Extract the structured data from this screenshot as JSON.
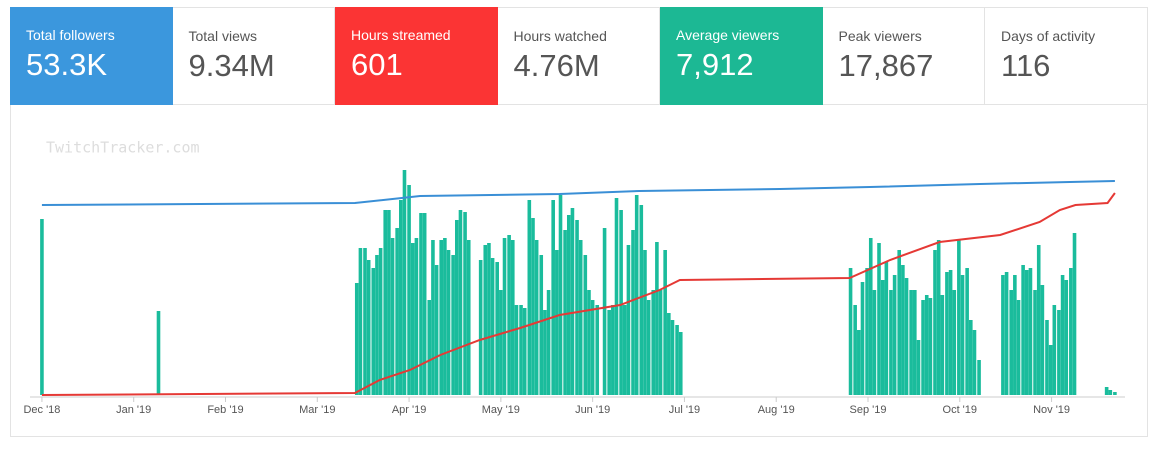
{
  "cards": [
    {
      "label": "Total followers",
      "value": "53.3K",
      "color": "#3b97dd"
    },
    {
      "label": "Total views",
      "value": "9.34M",
      "color": null
    },
    {
      "label": "Hours streamed",
      "value": "601",
      "color": "#fb3434"
    },
    {
      "label": "Hours watched",
      "value": "4.76M",
      "color": null
    },
    {
      "label": "Average viewers",
      "value": "7,912",
      "color": "#1cb894"
    },
    {
      "label": "Peak viewers",
      "value": "17,867",
      "color": null
    },
    {
      "label": "Days of activity",
      "value": "116",
      "color": null
    }
  ],
  "chart_data": {
    "type": "bar",
    "watermark": "TwitchTracker.com",
    "xlim": [
      -0.13,
      11.8
    ],
    "ylim": [
      0,
      230
    ],
    "xticks": [
      {
        "value": 0,
        "label": "Dec '18"
      },
      {
        "value": 1,
        "label": "Jan '19"
      },
      {
        "value": 2,
        "label": "Feb '19"
      },
      {
        "value": 3,
        "label": "Mar '19"
      },
      {
        "value": 4,
        "label": "Apr '19"
      },
      {
        "value": 5,
        "label": "May '19"
      },
      {
        "value": 6,
        "label": "Jun '19"
      },
      {
        "value": 7,
        "label": "Jul '19"
      },
      {
        "value": 8,
        "label": "Aug '19"
      },
      {
        "value": 9,
        "label": "Sep '19"
      },
      {
        "value": 10,
        "label": "Oct '19"
      },
      {
        "value": 11,
        "label": "Nov '19"
      }
    ],
    "bars": {
      "color": "#1abc9c",
      "x": [
        0.0,
        1.27,
        3.43,
        3.47,
        3.52,
        3.56,
        3.61,
        3.65,
        3.69,
        3.74,
        3.78,
        3.82,
        3.87,
        3.91,
        3.95,
        4.0,
        4.04,
        4.08,
        4.13,
        4.17,
        4.22,
        4.26,
        4.3,
        4.35,
        4.39,
        4.43,
        4.48,
        4.52,
        4.56,
        4.61,
        4.65,
        4.78,
        4.83,
        4.87,
        4.91,
        4.96,
        5.0,
        5.04,
        5.09,
        5.13,
        5.17,
        5.22,
        5.26,
        5.31,
        5.35,
        5.39,
        5.44,
        5.48,
        5.52,
        5.57,
        5.61,
        5.65,
        5.7,
        5.74,
        5.78,
        5.83,
        5.87,
        5.92,
        5.96,
        6.0,
        6.05,
        6.13,
        6.18,
        6.22,
        6.26,
        6.31,
        6.35,
        6.39,
        6.44,
        6.48,
        6.53,
        6.57,
        6.61,
        6.66,
        6.7,
        6.74,
        6.79,
        6.83,
        6.87,
        6.92,
        6.96,
        8.81,
        8.86,
        8.9,
        8.94,
        8.99,
        9.03,
        9.07,
        9.12,
        9.16,
        9.2,
        9.25,
        9.29,
        9.34,
        9.38,
        9.42,
        9.47,
        9.51,
        9.55,
        9.6,
        9.64,
        9.68,
        9.73,
        9.77,
        9.81,
        9.86,
        9.9,
        9.94,
        9.99,
        10.03,
        10.08,
        10.12,
        10.16,
        10.21,
        10.47,
        10.51,
        10.56,
        10.6,
        10.64,
        10.69,
        10.73,
        10.77,
        10.82,
        10.86,
        10.9,
        10.95,
        10.99,
        11.03,
        11.08,
        11.12,
        11.16,
        11.21,
        11.25,
        11.6,
        11.64,
        11.69
      ],
      "values": [
        176,
        84,
        112,
        147,
        147,
        135,
        127,
        140,
        147,
        185,
        185,
        157,
        167,
        195,
        225,
        210,
        152,
        157,
        182,
        182,
        95,
        155,
        130,
        155,
        157,
        145,
        140,
        175,
        185,
        183,
        155,
        135,
        150,
        152,
        137,
        133,
        105,
        157,
        160,
        155,
        90,
        90,
        87,
        195,
        177,
        155,
        140,
        85,
        105,
        195,
        145,
        200,
        165,
        180,
        187,
        175,
        155,
        140,
        105,
        95,
        90,
        167,
        85,
        90,
        197,
        185,
        90,
        150,
        165,
        200,
        190,
        145,
        95,
        105,
        153,
        105,
        145,
        82,
        75,
        70,
        63,
        127,
        90,
        65,
        113,
        127,
        157,
        105,
        152,
        115,
        133,
        105,
        120,
        145,
        130,
        117,
        105,
        105,
        55,
        95,
        100,
        97,
        145,
        155,
        100,
        123,
        125,
        105,
        155,
        120,
        127,
        75,
        65,
        35,
        120,
        123,
        105,
        120,
        95,
        130,
        125,
        127,
        105,
        150,
        110,
        75,
        50,
        90,
        85,
        120,
        115,
        127,
        162,
        8,
        5,
        3
      ]
    },
    "series": [
      {
        "type": "line",
        "color": "#3a8fd6",
        "x": [
          0,
          3.41,
          4.12,
          5.64,
          6.51,
          8.04,
          9.02,
          10.22,
          11.2,
          11.69
        ],
        "values": [
          190,
          192,
          199,
          201,
          204,
          206,
          208,
          211,
          213,
          214
        ]
      },
      {
        "type": "line",
        "color": "#e53935",
        "x": [
          0,
          3.41,
          3.68,
          4.01,
          4.34,
          4.77,
          5.21,
          5.64,
          6.3,
          6.73,
          6.95,
          8.8,
          9.24,
          9.78,
          10.44,
          10.87,
          11.09,
          11.26,
          11.61,
          11.69
        ],
        "values": [
          0,
          2,
          15,
          25,
          40,
          55,
          67,
          80,
          90,
          105,
          115,
          117,
          135,
          153,
          160,
          173,
          185,
          190,
          192,
          202
        ]
      }
    ]
  }
}
